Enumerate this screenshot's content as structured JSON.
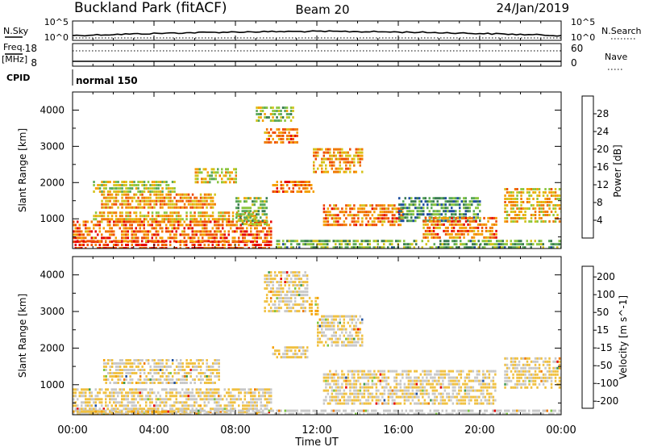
{
  "header": {
    "station": "Buckland Park (fitACF)",
    "beam": "Beam 20",
    "date": "24/Jan/2019"
  },
  "noise_panel": {
    "left_label": "N.Sky",
    "right_label": "N.Search",
    "left_ticks": [
      "10^5",
      "10^0"
    ],
    "right_ticks": [
      "10^5",
      "10^0"
    ]
  },
  "freq_panel": {
    "left_label_line1": "Freq.",
    "left_label_line2": "[MHz]",
    "right_label": "Nave",
    "left_ticks": [
      "18",
      "8"
    ],
    "right_ticks": [
      "60",
      "0"
    ]
  },
  "cpid_panel": {
    "label": "CPID",
    "mode": "normal 150"
  },
  "x_axis": {
    "label": "Time UT",
    "ticks": [
      "00:00",
      "04:00",
      "08:00",
      "12:00",
      "16:00",
      "20:00",
      "00:00"
    ]
  },
  "chart_data": [
    {
      "type": "heatmap",
      "name": "power",
      "ylabel": "Slant Range [km]",
      "ylim": [
        180,
        4500
      ],
      "yticks": [
        1000,
        2000,
        3000,
        4000
      ],
      "xlim_hours": [
        0,
        24
      ],
      "colorbar": {
        "label": "Power [dB]",
        "range": [
          0,
          32
        ],
        "ticks": [
          "28",
          "24",
          "20",
          "16",
          "12",
          "8",
          "4"
        ],
        "colors": [
          "#0000ff",
          "#1e4ea0",
          "#3a7c52",
          "#5aa85a",
          "#8cc63f",
          "#d4c21a",
          "#f5a000",
          "#f07800",
          "#ee4a00",
          "#e60000"
        ]
      },
      "echo_regions": [
        {
          "t": [
            0.0,
            9.8
          ],
          "r": [
            200,
            400
          ],
          "level": 28
        },
        {
          "t": [
            0.0,
            9.8
          ],
          "r": [
            400,
            950
          ],
          "level": 25
        },
        {
          "t": [
            1.0,
            9.0
          ],
          "r": [
            950,
            1200
          ],
          "level": 20
        },
        {
          "t": [
            1.4,
            7.0
          ],
          "r": [
            1300,
            1700
          ],
          "level": 22
        },
        {
          "t": [
            1.0,
            5.0
          ],
          "r": [
            1700,
            2050
          ],
          "level": 16
        },
        {
          "t": [
            6.0,
            8.0
          ],
          "r": [
            2000,
            2400
          ],
          "level": 18
        },
        {
          "t": [
            8.0,
            9.5
          ],
          "r": [
            800,
            1600
          ],
          "level": 14
        },
        {
          "t": [
            9.0,
            10.8
          ],
          "r": [
            3700,
            4100
          ],
          "level": 14
        },
        {
          "t": [
            9.4,
            11.0
          ],
          "r": [
            3100,
            3500
          ],
          "level": 24
        },
        {
          "t": [
            9.8,
            11.8
          ],
          "r": [
            1700,
            2050
          ],
          "level": 25
        },
        {
          "t": [
            11.8,
            14.2
          ],
          "r": [
            2250,
            2950
          ],
          "level": 22
        },
        {
          "t": [
            12.3,
            16.2
          ],
          "r": [
            800,
            1400
          ],
          "level": 24
        },
        {
          "t": [
            16.0,
            20.0
          ],
          "r": [
            900,
            1600
          ],
          "level": 10
        },
        {
          "t": [
            17.2,
            20.8
          ],
          "r": [
            450,
            1050
          ],
          "level": 24
        },
        {
          "t": [
            10.0,
            24.0
          ],
          "r": [
            180,
            420
          ],
          "level": 12
        },
        {
          "t": [
            21.2,
            24.0
          ],
          "r": [
            900,
            1850
          ],
          "level": 20
        }
      ]
    },
    {
      "type": "heatmap",
      "name": "velocity",
      "ylabel": "Slant Range [km]",
      "ylim": [
        180,
        4500
      ],
      "yticks": [
        1000,
        2000,
        3000,
        4000
      ],
      "xlim_hours": [
        0,
        24
      ],
      "colorbar": {
        "label": "Velocity [m s^-1]",
        "range": [
          -250,
          250
        ],
        "ticks": [
          "200",
          "100",
          "50",
          "15",
          "-15",
          "-50",
          "-100",
          "-200"
        ],
        "colors": [
          "#e60000",
          "#f07800",
          "#f5a000",
          "#f0c040",
          "#c8c8c8",
          "#7cc63f",
          "#3c9a50",
          "#2050a0"
        ]
      },
      "echo_regions": [
        {
          "t": [
            0.0,
            9.8
          ],
          "r": [
            250,
            900
          ],
          "v": 0
        },
        {
          "t": [
            1.5,
            7.2
          ],
          "r": [
            1000,
            1700
          ],
          "v": 0
        },
        {
          "t": [
            9.4,
            11.5
          ],
          "r": [
            3000,
            4100
          ],
          "v": 0
        },
        {
          "t": [
            11.6,
            12.0
          ],
          "r": [
            2900,
            3400
          ],
          "v": -60
        },
        {
          "t": [
            9.8,
            11.5
          ],
          "r": [
            1700,
            2050
          ],
          "v": 0
        },
        {
          "t": [
            12.0,
            14.2
          ],
          "r": [
            2100,
            2900
          ],
          "v": 0
        },
        {
          "t": [
            12.3,
            20.8
          ],
          "r": [
            500,
            1400
          ],
          "v": 0
        },
        {
          "t": [
            21.2,
            24.0
          ],
          "r": [
            900,
            1750
          ],
          "v": 0
        },
        {
          "t": [
            0.0,
            24.0
          ],
          "r": [
            180,
            320
          ],
          "v": 30
        },
        {
          "t": [
            0.0,
            5.5
          ],
          "r": [
            180,
            300
          ],
          "v": -60
        }
      ]
    }
  ]
}
